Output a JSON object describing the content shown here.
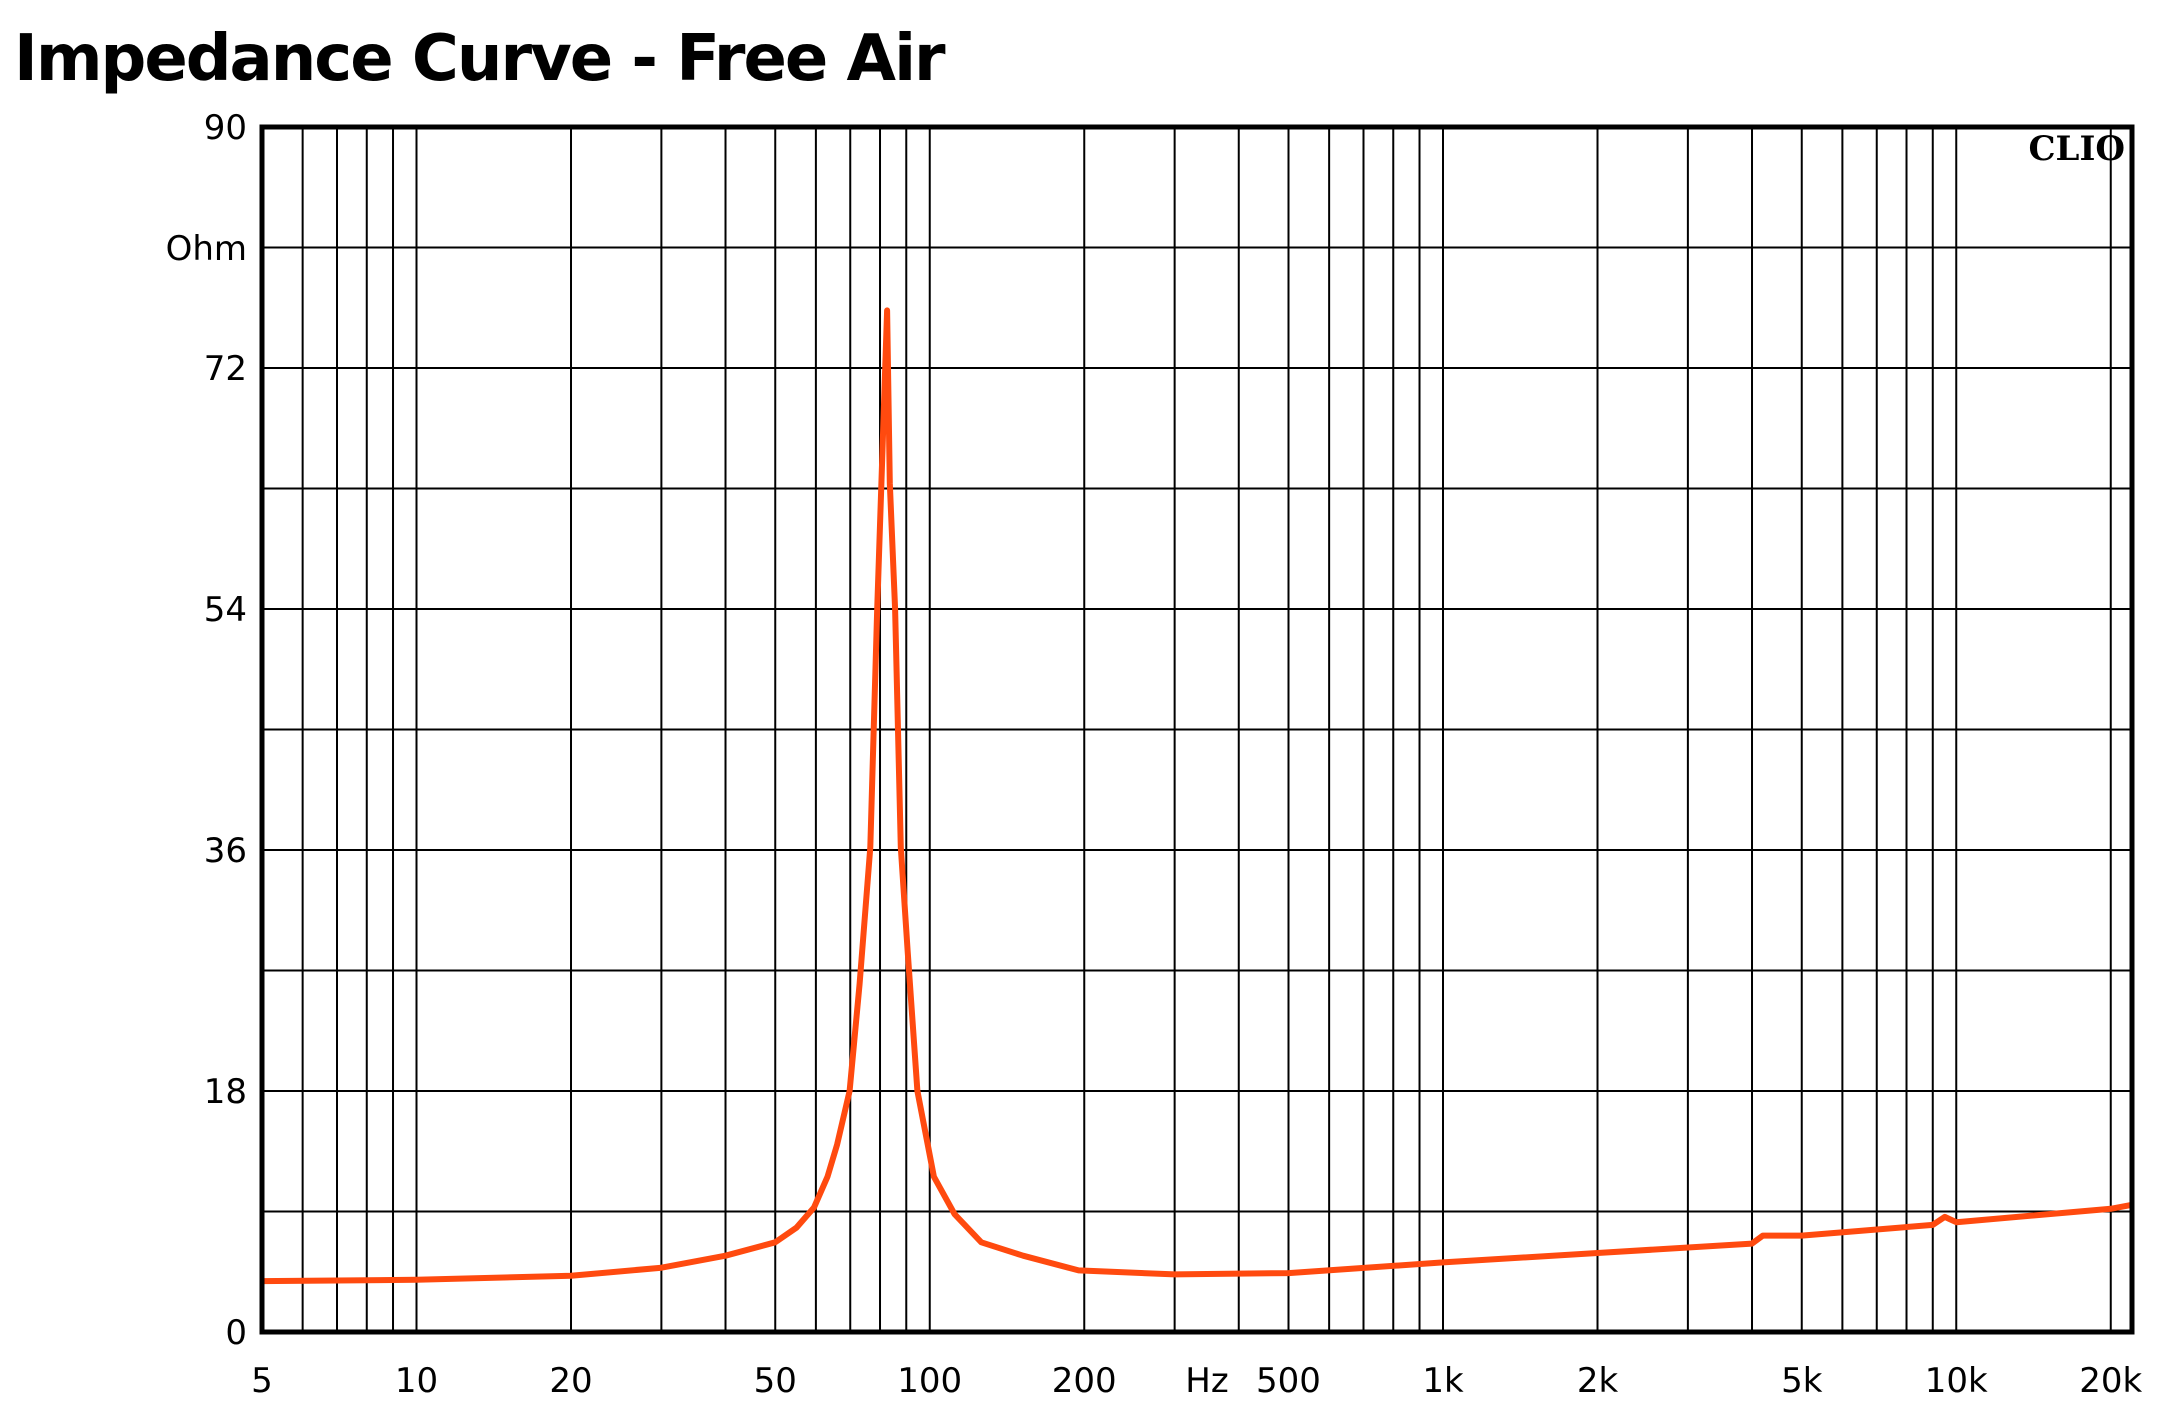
{
  "chart_data": {
    "type": "line",
    "title": "Impedance Curve - Free Air",
    "x_label": "Hz",
    "y_label": "Ohm",
    "watermark": "CLIO",
    "xscale": "log",
    "xlim": [
      5,
      22000
    ],
    "ylim": [
      0,
      90
    ],
    "xticks": [
      5,
      10,
      20,
      50,
      100,
      200,
      500,
      {
        "value": 1000,
        "label": "1k"
      },
      {
        "value": 2000,
        "label": "2k"
      },
      {
        "value": 5000,
        "label": "5k"
      },
      {
        "value": 10000,
        "label": "10k"
      },
      {
        "value": 20000,
        "label": "20k"
      }
    ],
    "minor_xticks": [
      6,
      7,
      8,
      9,
      30,
      40,
      60,
      70,
      80,
      90,
      300,
      400,
      600,
      700,
      800,
      900,
      3000,
      4000,
      6000,
      7000,
      8000,
      9000
    ],
    "yticks": [
      0,
      18,
      36,
      54,
      72,
      90
    ],
    "minor_yticks": [
      9,
      27,
      45,
      63,
      81
    ],
    "grid": true,
    "x": [
      5,
      10,
      20,
      30,
      40,
      50,
      55,
      59.5,
      63.2,
      66,
      69.8,
      73,
      76.6,
      79,
      80.5,
      82.6,
      83.6,
      85.6,
      87.8,
      90.6,
      94.6,
      101.9,
      111.8,
      126,
      152,
      195,
      300,
      500,
      1000,
      2000,
      4000,
      4200,
      5000,
      9000,
      9500,
      10000,
      20000,
      22000
    ],
    "series": [
      {
        "color": "#ff4a0f",
        "values": [
          3.8,
          3.9,
          4.2,
          4.8,
          5.7,
          6.7,
          7.8,
          9.3,
          11.6,
          14,
          18,
          26,
          36.2,
          54,
          63.4,
          76.3,
          63.4,
          54,
          36.2,
          28.4,
          18,
          11.6,
          8.8,
          6.7,
          5.7,
          4.6,
          4.3,
          4.4,
          5.2,
          5.9,
          6.6,
          7.2,
          7.2,
          8.0,
          8.6,
          8.2,
          9.2,
          9.5
        ]
      }
    ]
  }
}
